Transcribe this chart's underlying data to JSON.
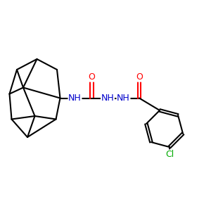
{
  "background_color": "#ffffff",
  "bond_color": "#000000",
  "n_color": "#0000cc",
  "o_color": "#ff0000",
  "cl_color": "#00aa00",
  "lw": 1.5,
  "fs": 9,
  "xlim": [
    0,
    10
  ],
  "ylim": [
    0,
    10
  ],
  "fig_width": 3.0,
  "fig_height": 3.0,
  "dpi": 100
}
